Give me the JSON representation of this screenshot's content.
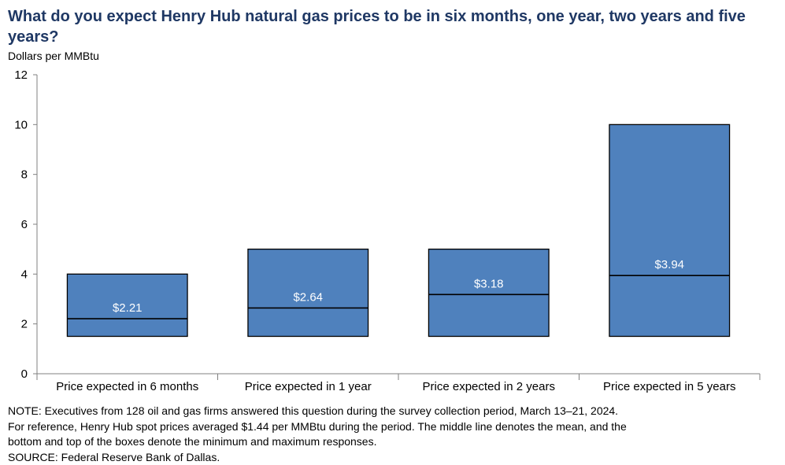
{
  "title": "What do you expect Henry Hub natural gas prices to be in six months, one year, two years and five years?",
  "unit_label": "Dollars  per MMBtu",
  "chart_data": {
    "type": "box",
    "ylim": [
      0,
      12
    ],
    "y_ticks": [
      0,
      2,
      4,
      6,
      8,
      10,
      12
    ],
    "grid": false,
    "categories": [
      "Price expected in 6 months",
      "Price expected in 1 year",
      "Price expected in 2 years",
      "Price expected in 5 years"
    ],
    "boxes": [
      {
        "min": 1.5,
        "max": 4.0,
        "mean": 2.21,
        "label": "$2.21"
      },
      {
        "min": 1.5,
        "max": 5.0,
        "mean": 2.64,
        "label": "$2.64"
      },
      {
        "min": 1.5,
        "max": 5.0,
        "mean": 3.18,
        "label": "$3.18"
      },
      {
        "min": 1.5,
        "max": 10.0,
        "mean": 3.94,
        "label": "$3.94"
      }
    ],
    "box_color": "#4f81bd"
  },
  "note_lines": [
    "NOTE:  Executives  from 128 oil and gas firms answered  this question  during the survey collection  period, March 13–21, 2024.",
    "For reference,  Henry Hub spot prices averaged  $1.44 per MMBtu  during the period. The middle line denotes the mean, and the",
    "bottom  and top of the boxes  denote  the minimum  and maximum  responses.",
    "SOURCE:  Federal Reserve  Bank of Dallas."
  ]
}
